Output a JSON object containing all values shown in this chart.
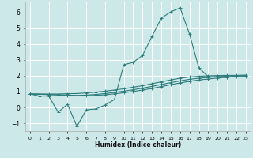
{
  "xlabel": "Humidex (Indice chaleur)",
  "bg_color": "#cde8e8",
  "grid_color": "#ffffff",
  "line_color": "#2e7d7d",
  "xlim": [
    -0.5,
    23.5
  ],
  "ylim": [
    -1.5,
    6.7
  ],
  "xticks": [
    0,
    1,
    2,
    3,
    4,
    5,
    6,
    7,
    8,
    9,
    10,
    11,
    12,
    13,
    14,
    15,
    16,
    17,
    18,
    19,
    20,
    21,
    22,
    23
  ],
  "yticks": [
    -1,
    0,
    1,
    2,
    3,
    4,
    5,
    6
  ],
  "series1_x": [
    0,
    1,
    2,
    3,
    4,
    5,
    6,
    7,
    8,
    9,
    10,
    11,
    12,
    13,
    14,
    15,
    16,
    17,
    18,
    19,
    20,
    21,
    22,
    23
  ],
  "series1_y": [
    0.85,
    0.72,
    0.72,
    -0.3,
    0.2,
    -1.2,
    -0.15,
    -0.1,
    0.15,
    0.5,
    2.7,
    2.85,
    3.3,
    4.5,
    5.65,
    6.05,
    6.3,
    4.65,
    2.5,
    1.95,
    1.95,
    1.9,
    2.0,
    2.0
  ],
  "series2_x": [
    0,
    1,
    2,
    3,
    4,
    5,
    6,
    7,
    8,
    9,
    10,
    11,
    12,
    13,
    14,
    15,
    16,
    17,
    18,
    19,
    20,
    21,
    22,
    23
  ],
  "series2_y": [
    0.85,
    0.85,
    0.85,
    0.85,
    0.87,
    0.88,
    0.92,
    0.97,
    1.03,
    1.1,
    1.18,
    1.28,
    1.38,
    1.5,
    1.62,
    1.74,
    1.85,
    1.93,
    1.97,
    2.0,
    2.02,
    2.03,
    2.03,
    2.05
  ],
  "series3_x": [
    0,
    1,
    2,
    3,
    4,
    5,
    6,
    7,
    8,
    9,
    10,
    11,
    12,
    13,
    14,
    15,
    16,
    17,
    18,
    19,
    20,
    21,
    22,
    23
  ],
  "series3_y": [
    0.85,
    0.84,
    0.82,
    0.8,
    0.78,
    0.76,
    0.78,
    0.82,
    0.88,
    0.95,
    1.03,
    1.12,
    1.22,
    1.33,
    1.45,
    1.57,
    1.68,
    1.78,
    1.85,
    1.9,
    1.95,
    1.98,
    2.0,
    2.02
  ],
  "series4_x": [
    0,
    1,
    2,
    3,
    4,
    5,
    6,
    7,
    8,
    9,
    10,
    11,
    12,
    13,
    14,
    15,
    16,
    17,
    18,
    19,
    20,
    21,
    22,
    23
  ],
  "series4_y": [
    0.85,
    0.83,
    0.81,
    0.79,
    0.77,
    0.75,
    0.74,
    0.76,
    0.8,
    0.86,
    0.93,
    1.01,
    1.1,
    1.2,
    1.32,
    1.44,
    1.55,
    1.65,
    1.74,
    1.8,
    1.86,
    1.91,
    1.95,
    1.97
  ]
}
